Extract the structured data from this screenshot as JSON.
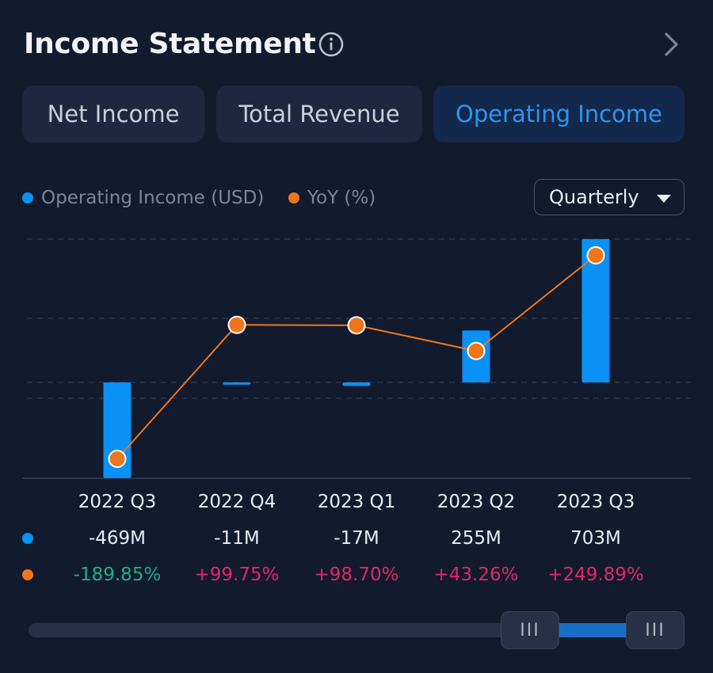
{
  "header": {
    "title": "Income Statement"
  },
  "tabs": [
    {
      "label": "Net Income",
      "active": false
    },
    {
      "label": "Total Revenue",
      "active": false
    },
    {
      "label": "Operating Income",
      "active": true
    }
  ],
  "legend": {
    "series1": "Operating Income (USD)",
    "series2": "YoY (%)"
  },
  "period_select": {
    "value": "Quarterly"
  },
  "colors": {
    "bar": "#0a91f5",
    "line": "#f0751a",
    "positive": "#e0266e",
    "negative": "#1fae8a",
    "accent": "#2b96f4"
  },
  "rows": {
    "values": [
      "-469M",
      "-11M",
      "-17M",
      "255M",
      "703M"
    ],
    "yoy": [
      "-189.85%",
      "+99.75%",
      "+98.70%",
      "+43.26%",
      "+249.89%"
    ]
  },
  "scroller": {
    "handle_left_label": "III",
    "handle_right_label": "III",
    "window_start": 0.8,
    "window_end": 1.0
  },
  "chart_data": {
    "type": "bar",
    "categories": [
      "2022 Q3",
      "2022 Q4",
      "2023 Q1",
      "2023 Q2",
      "2023 Q3"
    ],
    "series": [
      {
        "name": "Operating Income (USD)",
        "type": "bar",
        "unit": "M",
        "values": [
          -469,
          -11,
          -17,
          255,
          703
        ]
      },
      {
        "name": "YoY (%)",
        "type": "line",
        "unit": "%",
        "values": [
          -189.85,
          99.75,
          98.7,
          43.26,
          249.89
        ]
      }
    ],
    "title": "",
    "xlabel": "",
    "ylabel": "",
    "bar_ylim": [
      -469,
      703
    ],
    "line_ylim": [
      -230,
      285
    ],
    "grid": true,
    "legend_position": "top-left"
  }
}
